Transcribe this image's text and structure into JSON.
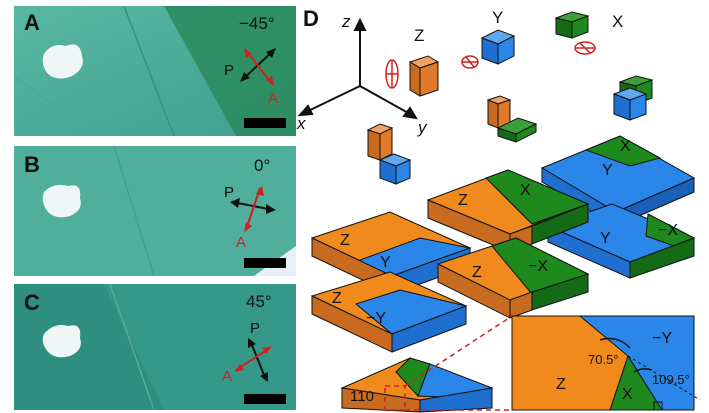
{
  "panels": [
    {
      "letter": "A",
      "angle": "−45°",
      "p": "P",
      "a": "A"
    },
    {
      "letter": "B",
      "angle": "0°",
      "p": "P",
      "a": "A"
    },
    {
      "letter": "C",
      "angle": "45°",
      "p": "P",
      "a": "A"
    }
  ],
  "diagram": {
    "letter": "D",
    "axes": {
      "x": "x",
      "y": "y",
      "z": "z"
    },
    "orientation_labels": {
      "z": "Z",
      "y": "Y",
      "x": "X"
    },
    "slab_labels": {
      "s1": [
        "X",
        "Y"
      ],
      "s2": [
        "Y",
        "−X"
      ],
      "s3": [
        "Z",
        "X"
      ],
      "s4": [
        "Z",
        "Y"
      ],
      "s5": [
        "Z",
        "−X"
      ],
      "s6": [
        "Z",
        "−Y"
      ]
    },
    "small_slab": "110",
    "inset": {
      "z": "Z",
      "x": "X",
      "neg_y": "−Y",
      "angle1": "70.5°",
      "angle2": "109.5°"
    }
  },
  "colors": {
    "orange": "#f08a1c",
    "blue": "#2a86e8",
    "green": "#1e8a1e",
    "polarizer_red": "#d02020",
    "red_dash": "#cc2222"
  }
}
